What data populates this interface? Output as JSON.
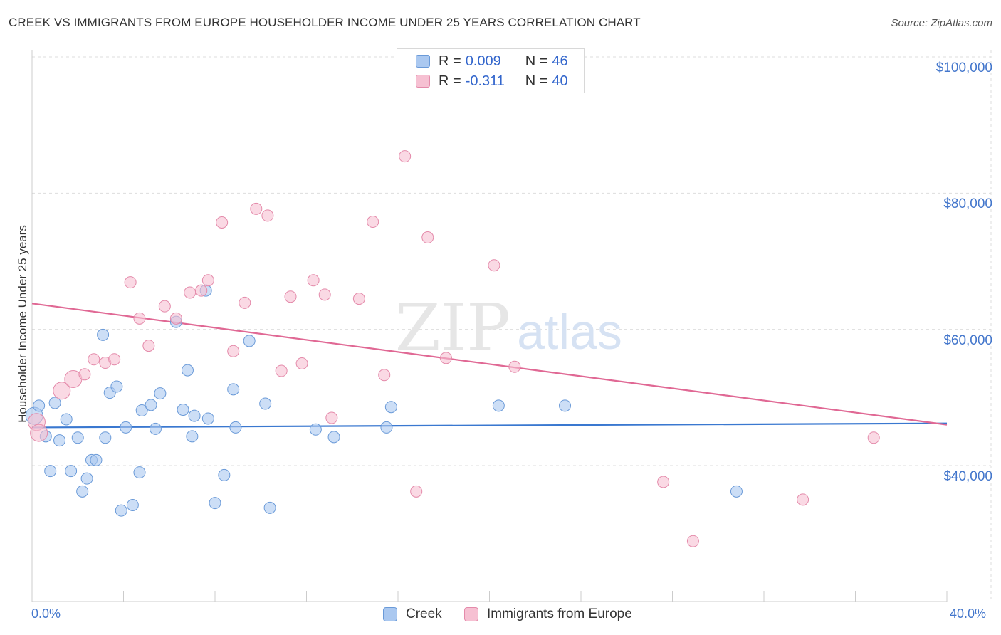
{
  "title": "CREEK VS IMMIGRANTS FROM EUROPE HOUSEHOLDER INCOME UNDER 25 YEARS CORRELATION CHART",
  "source": "Source: ZipAtlas.com",
  "watermark": {
    "zip": "ZIP",
    "atlas": "atlas"
  },
  "legend": {
    "rows": [
      {
        "r_label": "R = ",
        "r_value": "0.009",
        "n_label": "N = ",
        "n_value": "46"
      },
      {
        "r_label": "R = ",
        "r_value": "-0.311",
        "n_label": "N = ",
        "n_value": "40"
      }
    ]
  },
  "colors": {
    "creek_fill": "#aac8f0",
    "creek_stroke": "#6a9ad8",
    "creek_line": "#3a78d0",
    "europe_fill": "#f6c0d2",
    "europe_stroke": "#e48aaa",
    "europe_line": "#e06894",
    "grid": "#dddddd",
    "tick": "#4477cc"
  },
  "chart_data": {
    "type": "scatter",
    "title": "CREEK VS IMMIGRANTS FROM EUROPE HOUSEHOLDER INCOME UNDER 25 YEARS CORRELATION CHART",
    "xlabel": "",
    "ylabel": "Householder Income Under 25 years",
    "xlim": [
      0,
      40
    ],
    "ylim": [
      20000,
      102000
    ],
    "x_tick_labels": [
      "0.0%",
      "40.0%"
    ],
    "y_ticks": [
      40000,
      60000,
      80000,
      100000
    ],
    "y_tick_labels": [
      "$40,000",
      "$60,000",
      "$80,000",
      "$100,000"
    ],
    "grid": true,
    "legend_position": "top-center",
    "series": [
      {
        "name": "Creek",
        "r": 0.009,
        "n": 46,
        "trend": {
          "x": [
            0,
            40
          ],
          "y": [
            45600,
            46200
          ]
        },
        "points": [
          {
            "x": 0.1,
            "y": 47300,
            "big": true
          },
          {
            "x": 0.3,
            "y": 48800
          },
          {
            "x": 0.6,
            "y": 44300
          },
          {
            "x": 0.8,
            "y": 39200
          },
          {
            "x": 1.0,
            "y": 49200
          },
          {
            "x": 1.2,
            "y": 43700
          },
          {
            "x": 1.5,
            "y": 46800
          },
          {
            "x": 1.7,
            "y": 39200
          },
          {
            "x": 2.0,
            "y": 44100
          },
          {
            "x": 2.2,
            "y": 36200
          },
          {
            "x": 2.4,
            "y": 38100
          },
          {
            "x": 2.6,
            "y": 40800
          },
          {
            "x": 2.8,
            "y": 40800
          },
          {
            "x": 3.1,
            "y": 59200
          },
          {
            "x": 3.2,
            "y": 44100
          },
          {
            "x": 3.4,
            "y": 50700
          },
          {
            "x": 3.7,
            "y": 51600
          },
          {
            "x": 3.9,
            "y": 33400
          },
          {
            "x": 4.1,
            "y": 45600
          },
          {
            "x": 4.4,
            "y": 34200
          },
          {
            "x": 4.7,
            "y": 39000
          },
          {
            "x": 4.8,
            "y": 48100
          },
          {
            "x": 5.2,
            "y": 48900
          },
          {
            "x": 5.4,
            "y": 45400
          },
          {
            "x": 5.6,
            "y": 50600
          },
          {
            "x": 6.3,
            "y": 61100
          },
          {
            "x": 6.6,
            "y": 48200
          },
          {
            "x": 6.8,
            "y": 54000
          },
          {
            "x": 7.0,
            "y": 44300
          },
          {
            "x": 7.1,
            "y": 47300
          },
          {
            "x": 7.6,
            "y": 65700
          },
          {
            "x": 7.7,
            "y": 46900
          },
          {
            "x": 8.0,
            "y": 34500
          },
          {
            "x": 8.4,
            "y": 38600
          },
          {
            "x": 8.8,
            "y": 51200
          },
          {
            "x": 8.9,
            "y": 45600
          },
          {
            "x": 9.5,
            "y": 58300
          },
          {
            "x": 10.2,
            "y": 49100
          },
          {
            "x": 10.4,
            "y": 33800
          },
          {
            "x": 12.4,
            "y": 45300
          },
          {
            "x": 13.2,
            "y": 44200
          },
          {
            "x": 15.5,
            "y": 45600
          },
          {
            "x": 15.7,
            "y": 48600
          },
          {
            "x": 20.4,
            "y": 48800
          },
          {
            "x": 23.3,
            "y": 48800
          },
          {
            "x": 30.8,
            "y": 36200
          }
        ]
      },
      {
        "name": "Immigrants from Europe",
        "r": -0.311,
        "n": 40,
        "trend": {
          "x": [
            0,
            40
          ],
          "y": [
            63800,
            46000
          ]
        },
        "points": [
          {
            "x": 0.2,
            "y": 46400,
            "big": true
          },
          {
            "x": 0.3,
            "y": 44800,
            "big": true
          },
          {
            "x": 1.3,
            "y": 51000,
            "big": true
          },
          {
            "x": 1.8,
            "y": 52700,
            "big": true
          },
          {
            "x": 2.3,
            "y": 53400
          },
          {
            "x": 2.7,
            "y": 55600
          },
          {
            "x": 3.2,
            "y": 55100
          },
          {
            "x": 3.6,
            "y": 55600
          },
          {
            "x": 4.3,
            "y": 66900
          },
          {
            "x": 4.7,
            "y": 61600
          },
          {
            "x": 5.1,
            "y": 57600
          },
          {
            "x": 5.8,
            "y": 63400
          },
          {
            "x": 6.3,
            "y": 61600
          },
          {
            "x": 6.9,
            "y": 65400
          },
          {
            "x": 7.4,
            "y": 65700
          },
          {
            "x": 7.7,
            "y": 67200
          },
          {
            "x": 8.3,
            "y": 75700
          },
          {
            "x": 8.8,
            "y": 56800
          },
          {
            "x": 9.3,
            "y": 63900
          },
          {
            "x": 9.8,
            "y": 77700
          },
          {
            "x": 10.3,
            "y": 76700
          },
          {
            "x": 10.9,
            "y": 53900
          },
          {
            "x": 11.3,
            "y": 64800
          },
          {
            "x": 11.8,
            "y": 55000
          },
          {
            "x": 12.3,
            "y": 67200
          },
          {
            "x": 12.8,
            "y": 65100
          },
          {
            "x": 13.1,
            "y": 47000
          },
          {
            "x": 14.3,
            "y": 64500
          },
          {
            "x": 14.9,
            "y": 75800
          },
          {
            "x": 15.4,
            "y": 53300
          },
          {
            "x": 16.3,
            "y": 85400
          },
          {
            "x": 16.8,
            "y": 36200
          },
          {
            "x": 17.3,
            "y": 73500
          },
          {
            "x": 18.1,
            "y": 55800
          },
          {
            "x": 20.2,
            "y": 69400
          },
          {
            "x": 21.1,
            "y": 54500
          },
          {
            "x": 27.6,
            "y": 37600
          },
          {
            "x": 28.9,
            "y": 28900
          },
          {
            "x": 33.7,
            "y": 35000
          },
          {
            "x": 36.8,
            "y": 44100
          }
        ]
      }
    ]
  }
}
